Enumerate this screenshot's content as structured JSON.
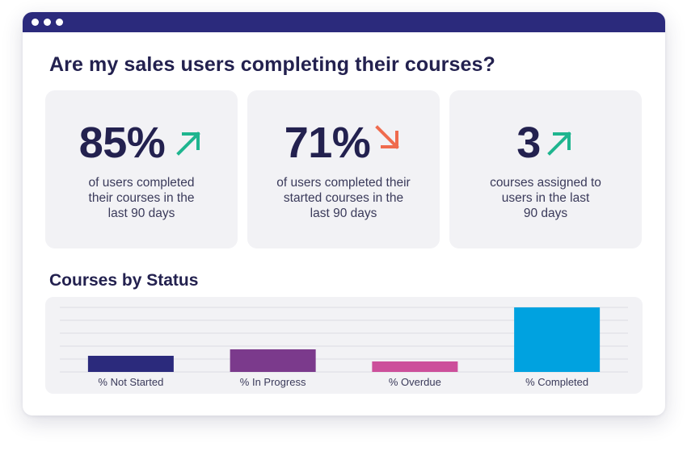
{
  "window": {
    "titlebar_color": "#2b2a7c",
    "dots": [
      "dot",
      "dot",
      "dot"
    ]
  },
  "headline": "Are my sales users completing their courses?",
  "stats": [
    {
      "value": "85%",
      "trend": "up",
      "trend_icon": "arrow-up-right-icon",
      "trend_color": "#1fb58f",
      "description_lines": [
        "of users completed",
        "their courses in the",
        "last 90 days"
      ]
    },
    {
      "value": "71%",
      "trend": "down",
      "trend_icon": "arrow-down-right-icon",
      "trend_color": "#ef6b4e",
      "description_lines": [
        "of users completed their",
        "started courses in the",
        "last 90 days"
      ]
    },
    {
      "value": "3",
      "trend": "up",
      "trend_icon": "arrow-up-right-icon",
      "trend_color": "#1fb58f",
      "description_lines": [
        "courses assigned to",
        "users in the last",
        "90 days"
      ]
    }
  ],
  "section_title": "Courses by Status",
  "chart_data": {
    "type": "bar",
    "title": "Courses by Status",
    "categories": [
      "% Not Started",
      "% In Progress",
      "% Overdue",
      "% Completed"
    ],
    "values": [
      20,
      28,
      13,
      80
    ],
    "colors": [
      "#2b2a7c",
      "#7b3a8c",
      "#cc4f9b",
      "#00a2e0"
    ],
    "ylim": [
      0,
      80
    ],
    "grid": true,
    "xlabel": "",
    "ylabel": ""
  }
}
